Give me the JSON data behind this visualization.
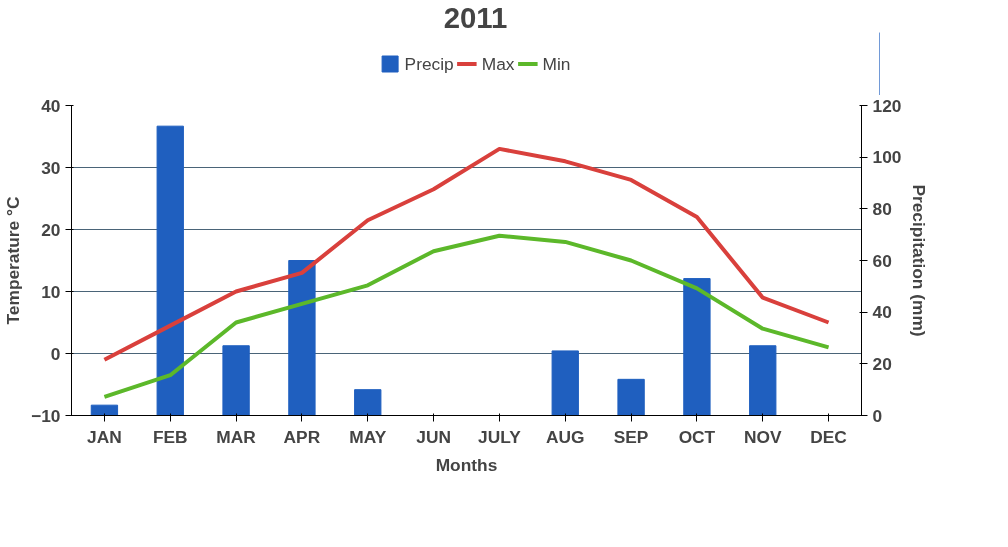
{
  "chart_data": {
    "type": "bar",
    "title": "2011",
    "xlabel": "Months",
    "ylabel": "Temperature °C",
    "y2label": "Precipitation (mm)",
    "categories": [
      "JAN",
      "FEB",
      "MAR",
      "APR",
      "MAY",
      "JUN",
      "JULY",
      "AUG",
      "SEP",
      "OCT",
      "NOV",
      "DEC"
    ],
    "series": [
      {
        "name": "Precip",
        "axis": "y2",
        "color": "#1f5fbf",
        "values": [
          4,
          112,
          27,
          60,
          10,
          0,
          0,
          25,
          14,
          53,
          27,
          0
        ]
      },
      {
        "name": "Max",
        "type": "line",
        "color": "#d9403c",
        "values": [
          -1,
          4.5,
          10,
          13,
          21.5,
          26.5,
          33,
          31,
          28,
          22,
          9,
          5
        ]
      },
      {
        "name": "Min",
        "type": "line",
        "color": "#5cb82a",
        "values": [
          -7,
          -3.5,
          5,
          8,
          11,
          16.5,
          19,
          18,
          15,
          10.5,
          4,
          1
        ]
      }
    ],
    "ylim": [
      -10,
      40
    ],
    "yticks": [
      -10,
      0,
      10,
      20,
      30,
      40
    ],
    "y2lim": [
      0,
      120
    ],
    "y2ticks": [
      0,
      20,
      40,
      60,
      80,
      100,
      120
    ],
    "grid": "y",
    "legend": "top"
  }
}
